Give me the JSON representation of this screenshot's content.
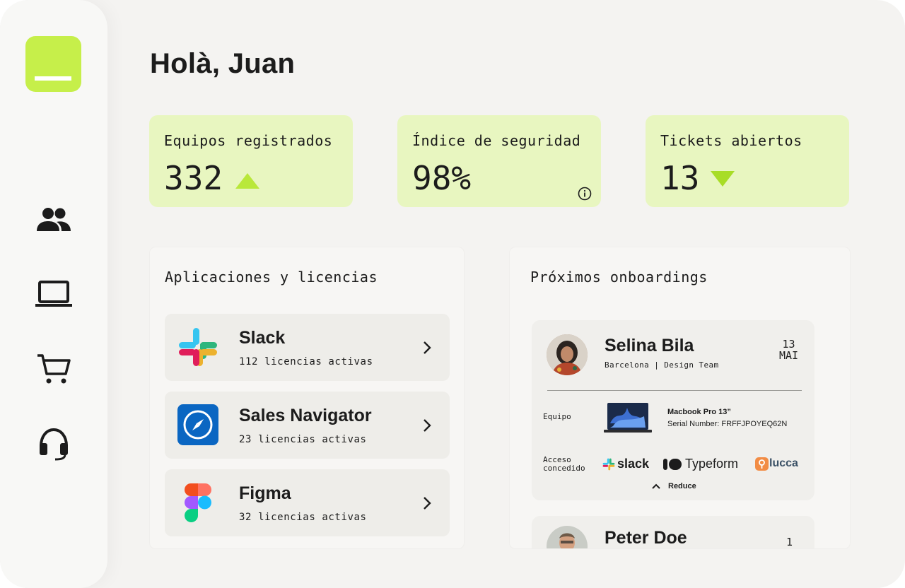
{
  "greeting": "Holà, Juan",
  "sidebar": {
    "items": [
      {
        "name": "users-icon"
      },
      {
        "name": "laptop-icon"
      },
      {
        "name": "cart-icon"
      },
      {
        "name": "headset-icon"
      }
    ]
  },
  "stats": [
    {
      "label": "Equipos registrados",
      "value": "332",
      "trend": "up"
    },
    {
      "label": "Índice de seguridad",
      "value": "98%",
      "icon": "info-icon"
    },
    {
      "label": "Tickets abiertos",
      "value": "13",
      "trend": "down"
    }
  ],
  "apps_panel": {
    "title": "Aplicaciones y licencias",
    "items": [
      {
        "name": "Slack",
        "licenses": "112 licencias activas",
        "icon": "slack-icon"
      },
      {
        "name": "Sales Navigator",
        "licenses": "23 licencias activas",
        "icon": "compass-icon"
      },
      {
        "name": "Figma",
        "licenses": "32 licencias activas",
        "icon": "figma-icon"
      }
    ]
  },
  "onboardings_panel": {
    "title": "Próximos onboardings",
    "items": [
      {
        "name": "Selina Bila",
        "location": "Barcelona | Design Team",
        "date_day": "13",
        "date_month": "MAI",
        "equipment_label": "Equipo",
        "device_name": "Macbook Pro 13”",
        "serial": "Serial Number: FRFFJPOYEQ62N",
        "access_label_1": "Acceso",
        "access_label_2": "concedido",
        "access_logos": [
          "slack",
          "Typeform",
          "lucca"
        ],
        "collapse_label": "Reduce"
      },
      {
        "name": "Peter Doe",
        "date_day": "1"
      }
    ]
  },
  "colors": {
    "accent": "#c6ef4a",
    "stat_bg": "#e8f6c0",
    "trend_up": "#b9e83a",
    "trend_down": "#a8dd26"
  }
}
